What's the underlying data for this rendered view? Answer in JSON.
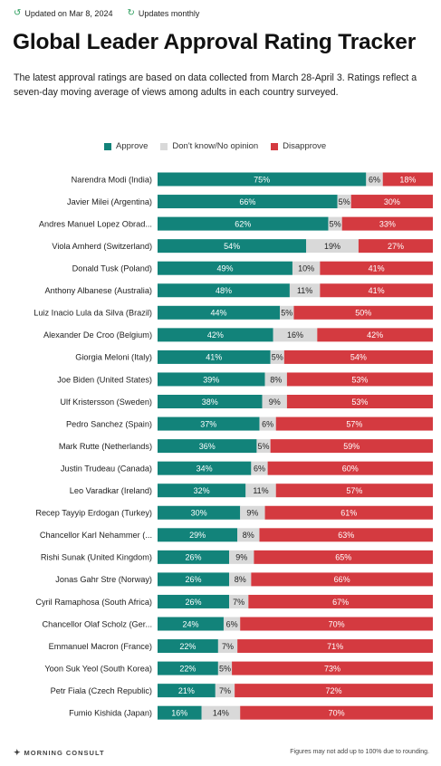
{
  "header": {
    "updated": "Updated on Mar 8, 2024",
    "frequency": "Updates monthly",
    "updated_icon": "history-icon",
    "frequency_icon": "refresh-icon"
  },
  "title": "Global Leader Approval Rating Tracker",
  "subtitle": "The latest approval ratings are based on data collected from March 28-April 3. Ratings reflect a seven-day moving average of views among adults in each country surveyed.",
  "footer": {
    "logo": "MORNING CONSULT",
    "note": "Figures may not add up to 100% due to rounding."
  },
  "colors": {
    "approve": "#12837a",
    "dont_know": "#d9d9d9",
    "disapprove": "#d43a40"
  },
  "chart_data": {
    "type": "bar",
    "stacked": true,
    "orientation": "horizontal",
    "xlim": [
      0,
      100
    ],
    "legend_position": "top",
    "categories": [
      "Narendra Modi (India)",
      "Javier Milei (Argentina)",
      "Andres Manuel Lopez Obrad...",
      "Viola Amherd (Switzerland)",
      "Donald Tusk (Poland)",
      "Anthony Albanese (Australia)",
      "Luiz Inacio Lula da Silva (Brazil)",
      "Alexander De Croo (Belgium)",
      "Giorgia Meloni (Italy)",
      "Joe Biden (United States)",
      "Ulf Kristersson (Sweden)",
      "Pedro Sanchez (Spain)",
      "Mark Rutte (Netherlands)",
      "Justin Trudeau (Canada)",
      "Leo Varadkar (Ireland)",
      "Recep Tayyip Erdogan (Turkey)",
      "Chancellor Karl Nehammer (...",
      "Rishi Sunak (United Kingdom)",
      "Jonas Gahr Stre (Norway)",
      "Cyril Ramaphosa (South Africa)",
      "Chancellor Olaf Scholz (Ger...",
      "Emmanuel Macron (France)",
      "Yoon Suk Yeol (South Korea)",
      "Petr Fiala (Czech Republic)",
      "Fumio Kishida (Japan)"
    ],
    "series": [
      {
        "name": "Approve",
        "values": [
          75,
          66,
          62,
          54,
          49,
          48,
          44,
          42,
          41,
          39,
          38,
          37,
          36,
          34,
          32,
          30,
          29,
          26,
          26,
          26,
          24,
          22,
          22,
          21,
          16
        ]
      },
      {
        "name": "Don't know/No opinion",
        "values": [
          6,
          5,
          5,
          19,
          10,
          11,
          5,
          16,
          5,
          8,
          9,
          6,
          5,
          6,
          11,
          9,
          8,
          9,
          8,
          7,
          6,
          7,
          5,
          7,
          14
        ]
      },
      {
        "name": "Disapprove",
        "values": [
          18,
          30,
          33,
          27,
          41,
          41,
          50,
          42,
          54,
          53,
          53,
          57,
          59,
          60,
          57,
          61,
          63,
          65,
          66,
          67,
          70,
          71,
          73,
          72,
          70
        ]
      }
    ]
  }
}
